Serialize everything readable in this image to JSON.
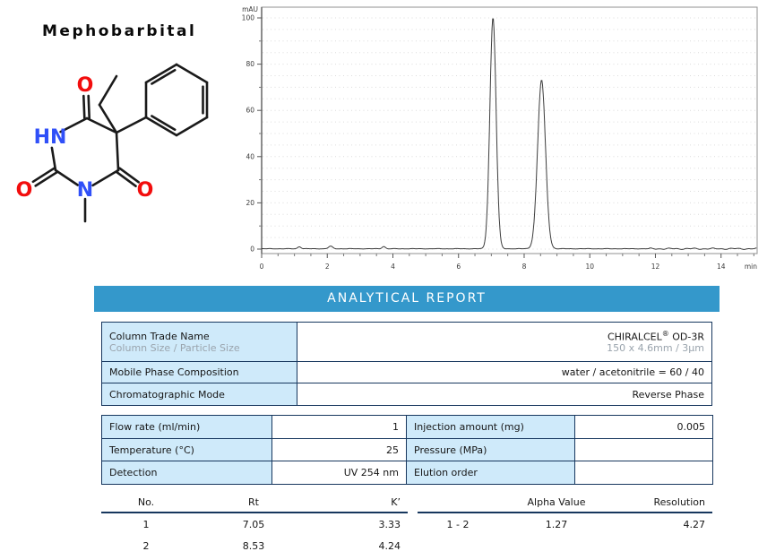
{
  "compound": {
    "name": "Mephobarbital"
  },
  "molecule": {
    "atom_labels": {
      "hn": "HN",
      "n": "N",
      "o_top": "O",
      "o_left": "O",
      "o_right": "O"
    },
    "n_color": "#3050f8",
    "o_color": "#f20d0d",
    "bond_color": "#1a1a1a"
  },
  "chart_data": {
    "type": "line",
    "title": "",
    "ylabel": "mAU",
    "xlabel": "min",
    "x_range_min": [
      0,
      15.1
    ],
    "y_range_mAU": [
      -2,
      104.5
    ],
    "x_major_ticks": [
      0,
      2,
      4,
      6,
      8,
      10,
      12,
      14
    ],
    "x_minor_step": 0.5,
    "y_major_ticks": [
      0,
      20,
      40,
      60,
      80,
      100
    ],
    "y_minor_step": 10,
    "grid": "dotted-horizontal",
    "legend": "none",
    "peaks": [
      {
        "no": 1,
        "rt_min": 7.05,
        "height_mAU": 100,
        "sigma_min": 0.095
      },
      {
        "no": 2,
        "rt_min": 8.53,
        "height_mAU": 73,
        "sigma_min": 0.12
      }
    ],
    "baseline_bumps": [
      {
        "rt_min": 1.15,
        "height_mAU": 0.9,
        "sigma_min": 0.05
      },
      {
        "rt_min": 2.1,
        "height_mAU": 1.1,
        "sigma_min": 0.06
      },
      {
        "rt_min": 3.72,
        "height_mAU": 1.0,
        "sigma_min": 0.05
      }
    ],
    "trace_color": "#3d3d3d",
    "frame_color": "#909090",
    "grid_color": "#dcdcdc",
    "tick_label_color": "#3a3a3a"
  },
  "report": {
    "banner_title": "ANALYTICAL REPORT",
    "accent_color": "#3498cb",
    "cell_fill_color": "#cfeafa",
    "border_color": "#17375e",
    "column_table": {
      "row1": {
        "label": "Column Trade Name",
        "sublabel": "Column Size / Particle Size",
        "value_brand": "CHIRALCEL",
        "value_reg": "®",
        "value_model": " OD-3R",
        "value_size": "150 x 4.6mm / 3µm"
      },
      "row2": {
        "label": "Mobile Phase Composition",
        "value": "water / acetonitrile = 60 / 40"
      },
      "row3": {
        "label": "Chromatographic Mode",
        "value": "Reverse Phase"
      }
    },
    "conditions_table": {
      "rows": [
        {
          "l1": "Flow rate (ml/min)",
          "v1": "1",
          "l2": "Injection amount (mg)",
          "v2": "0.005"
        },
        {
          "l1": "Temperature (°C)",
          "v1": "25",
          "l2": "Pressure (MPa)",
          "v2": ""
        },
        {
          "l1": "Detection",
          "v1": "UV 254 nm",
          "l2": "Elution order",
          "v2": ""
        }
      ]
    },
    "peak_table": {
      "headers": {
        "no": "No.",
        "rt": "Rt",
        "k": "K’"
      },
      "rows": [
        {
          "no": "1",
          "rt": "7.05",
          "k": "3.33"
        },
        {
          "no": "2",
          "rt": "8.53",
          "k": "4.24"
        }
      ]
    },
    "separation_table": {
      "headers": {
        "pair": "",
        "alpha": "Alpha Value",
        "resolution": "Resolution"
      },
      "rows": [
        {
          "pair": "1 - 2",
          "alpha": "1.27",
          "resolution": "4.27"
        }
      ]
    }
  }
}
